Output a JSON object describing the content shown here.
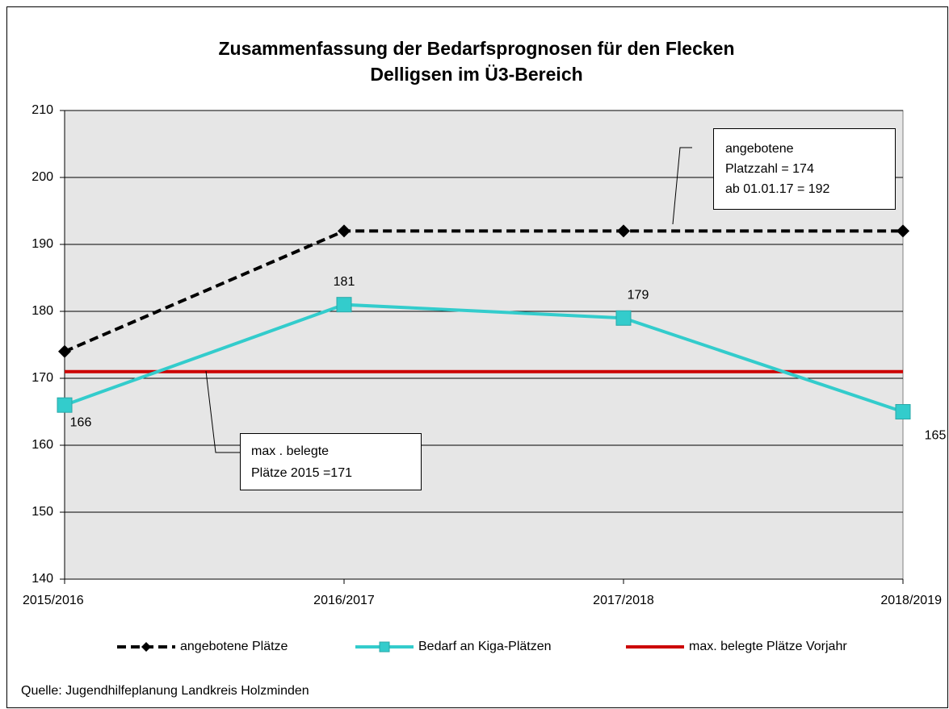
{
  "chart_data": {
    "type": "line",
    "title": [
      "Zusammenfassung der Bedarfsprognosen für den Flecken",
      "Delligsen im Ü3-Bereich"
    ],
    "categories": [
      "2015/2016",
      "2016/2017",
      "2017/2018",
      "2018/2019"
    ],
    "series": [
      {
        "name": "angebotene Plätze",
        "color": "#000000",
        "dashed": true,
        "marker": "diamond",
        "values": [
          174,
          192,
          192,
          192
        ]
      },
      {
        "name": "Bedarf an Kiga-Plätzen",
        "color": "#33cccc",
        "dashed": false,
        "marker": "square",
        "data_labels": true,
        "values": [
          166,
          181,
          179,
          165
        ]
      },
      {
        "name": "max. belegte Plätze Vorjahr",
        "color": "#cc0000",
        "dashed": false,
        "marker": "none",
        "values": [
          171,
          171,
          171,
          171
        ]
      }
    ],
    "ylim": [
      140,
      210
    ],
    "yticks": [
      140,
      150,
      160,
      170,
      180,
      190,
      200,
      210
    ],
    "grid": true,
    "annotations": [
      {
        "lines": [
          "angebotene",
          "Platzzahl = 174",
          "ab  01.01.17 = 192"
        ]
      },
      {
        "lines": [
          "max . belegte",
          "Plätze 2015 =171"
        ]
      }
    ],
    "source": "Quelle: Jugendhilfeplanung Landkreis Holzminden"
  }
}
